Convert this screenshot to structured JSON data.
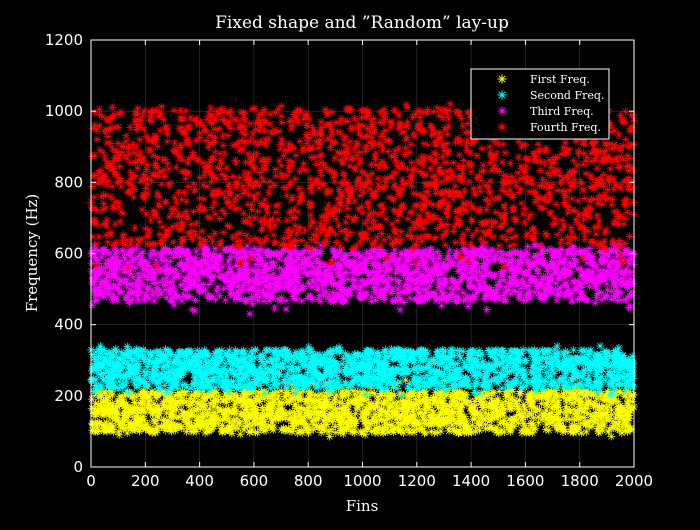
{
  "chart_data": {
    "type": "scatter",
    "title": "Fixed shape and ”Random” lay-up",
    "xlabel": "Fins",
    "ylabel": "Frequency (Hz)",
    "xlim": [
      0,
      2000
    ],
    "ylim": [
      0,
      1200
    ],
    "xticks": [
      0,
      200,
      400,
      600,
      800,
      1000,
      1200,
      1400,
      1600,
      1800,
      2000
    ],
    "yticks": [
      0,
      200,
      400,
      600,
      800,
      1000,
      1200
    ],
    "xtick_labels": [
      "0",
      "200",
      "400",
      "600",
      "800",
      "1000",
      "1200",
      "1400",
      "1600",
      "1800",
      "2000"
    ],
    "ytick_labels": [
      "0",
      "200",
      "400",
      "600",
      "800",
      "1000",
      "1200"
    ],
    "grid": true,
    "marker": "asterisk",
    "legend_position": "top-right",
    "series": [
      {
        "name": "First Freq.",
        "color": "#ffff00",
        "n_points": 2000,
        "x_range": [
          1,
          2000
        ],
        "y_typical_range": [
          95,
          215
        ],
        "y_range": [
          85,
          250
        ],
        "y_mean": 150
      },
      {
        "name": "Second Freq.",
        "color": "#00ffff",
        "n_points": 2000,
        "x_range": [
          1,
          2000
        ],
        "y_typical_range": [
          220,
          330
        ],
        "y_range": [
          200,
          340
        ],
        "y_mean": 285
      },
      {
        "name": "Third Freq.",
        "color": "#ff00ff",
        "n_points": 2000,
        "x_range": [
          1,
          2000
        ],
        "y_typical_range": [
          465,
          615
        ],
        "y_range": [
          430,
          625
        ],
        "y_mean": 550
      },
      {
        "name": "Fourth Freq.",
        "color": "#ff0000",
        "n_points": 2000,
        "x_range": [
          1,
          2000
        ],
        "y_typical_range": [
          620,
          1010
        ],
        "y_range": [
          550,
          1020
        ],
        "y_mean": 820
      }
    ]
  }
}
